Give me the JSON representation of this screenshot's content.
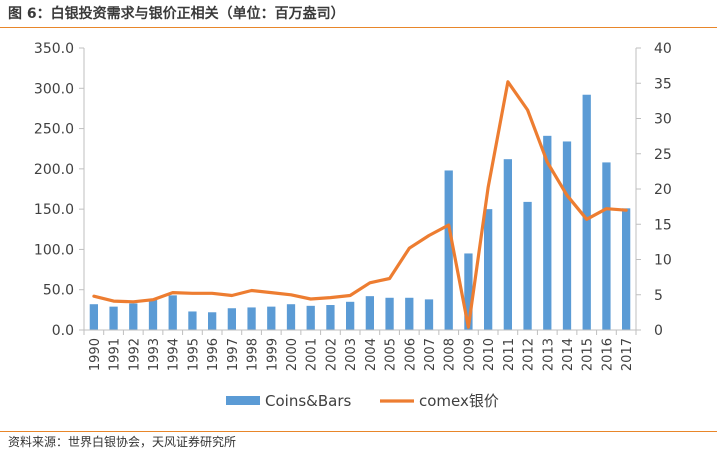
{
  "header": {
    "title": "图 6：白银投资需求与银价正相关（单位：百万盎司）"
  },
  "footer": {
    "source": "资料来源：世界白银协会，天风证券研究所"
  },
  "colors": {
    "bar": "#5b9bd5",
    "line": "#ed7d31",
    "axis": "#bfbfbf",
    "accent": "#e8862a"
  },
  "chart_data": {
    "type": "bar",
    "title": "白银投资需求与银价正相关（单位：百万盎司）",
    "categories": [
      "1990",
      "1991",
      "1992",
      "1993",
      "1994",
      "1995",
      "1996",
      "1997",
      "1998",
      "1999",
      "2000",
      "2001",
      "2002",
      "2003",
      "2004",
      "2005",
      "2006",
      "2007",
      "2008",
      "2009",
      "2010",
      "2011",
      "2012",
      "2013",
      "2014",
      "2015",
      "2016",
      "2017"
    ],
    "series": [
      {
        "name": "Coins&Bars",
        "type": "bar",
        "axis": "left",
        "values": [
          32,
          29,
          33,
          39,
          43,
          23,
          22,
          27,
          28,
          29,
          32,
          30,
          31,
          35,
          42,
          40,
          40,
          38,
          198,
          95,
          150,
          212,
          159,
          241,
          234,
          292,
          208,
          151
        ]
      },
      {
        "name": "comex银价",
        "type": "line",
        "axis": "right",
        "values": [
          4.8,
          4.1,
          4.0,
          4.3,
          5.3,
          5.2,
          5.2,
          4.9,
          5.6,
          5.3,
          5.0,
          4.4,
          4.6,
          4.9,
          6.7,
          7.3,
          11.6,
          13.4,
          14.9,
          0.4,
          20.2,
          35.2,
          31.2,
          23.8,
          19.1,
          15.7,
          17.2,
          17.0
        ]
      }
    ],
    "y_left": {
      "min": 0,
      "max": 350,
      "step": 50,
      "tick_labels": [
        "0.0",
        "50.0",
        "100.0",
        "150.0",
        "200.0",
        "250.0",
        "300.0",
        "350.0"
      ]
    },
    "y_right": {
      "min": 0,
      "max": 40,
      "step": 5,
      "tick_labels": [
        "0",
        "5",
        "10",
        "15",
        "20",
        "25",
        "30",
        "35",
        "40"
      ]
    },
    "legend": {
      "position": "bottom",
      "entries": [
        "Coins&Bars",
        "comex银价"
      ]
    },
    "grid": false
  }
}
